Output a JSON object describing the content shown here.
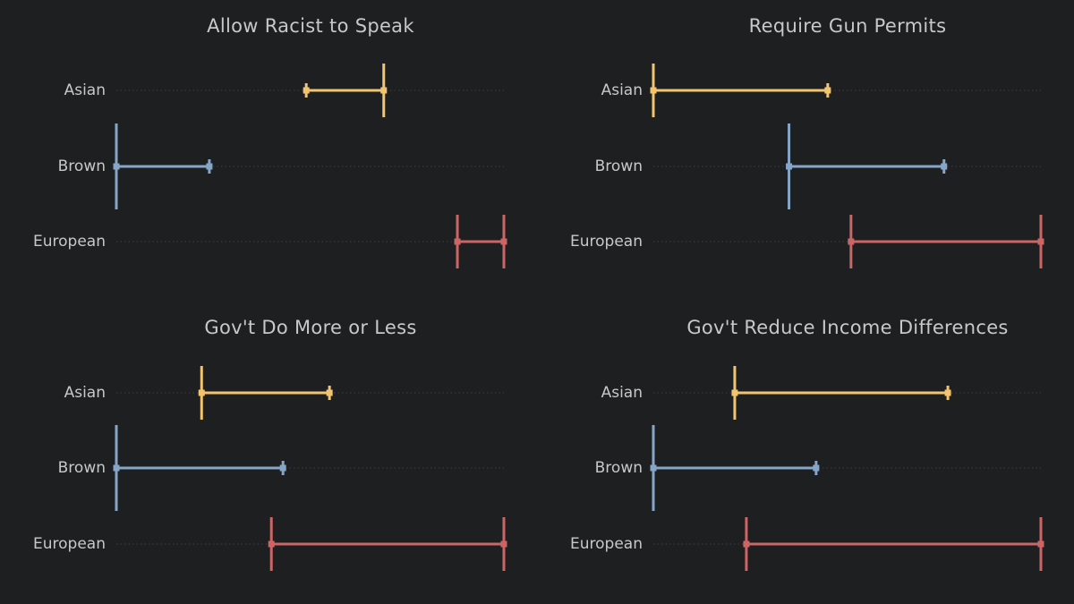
{
  "chart_data": [
    {
      "type": "range",
      "title": "Allow Racist to Speak",
      "categories": [
        "Asian",
        "Brown",
        "European"
      ],
      "series": [
        {
          "category": "Asian",
          "low": 0.49,
          "high": 0.69,
          "low_cap": "small",
          "high_cap": "tall",
          "color": "#f2c46d"
        },
        {
          "category": "Brown",
          "low": 0.0,
          "high": 0.24,
          "low_cap": "tall",
          "high_cap": "small",
          "color": "#86a6c8"
        },
        {
          "category": "European",
          "low": 0.88,
          "high": 1.0,
          "low_cap": "tall",
          "high_cap": "tall",
          "color": "#cc6666"
        }
      ],
      "xlim": [
        0,
        1
      ],
      "grid": true
    },
    {
      "type": "range",
      "title": "Require Gun Permits",
      "categories": [
        "Asian",
        "Brown",
        "European"
      ],
      "series": [
        {
          "category": "Asian",
          "low": 0.0,
          "high": 0.45,
          "low_cap": "tall",
          "high_cap": "small",
          "color": "#f2c46d"
        },
        {
          "category": "Brown",
          "low": 0.35,
          "high": 0.75,
          "low_cap": "tall",
          "high_cap": "small",
          "color": "#86a6c8"
        },
        {
          "category": "European",
          "low": 0.51,
          "high": 1.0,
          "low_cap": "tall",
          "high_cap": "tall",
          "color": "#cc6666"
        }
      ],
      "xlim": [
        0,
        1
      ],
      "grid": true
    },
    {
      "type": "range",
      "title": "Gov't Do More or Less",
      "categories": [
        "Asian",
        "Brown",
        "European"
      ],
      "series": [
        {
          "category": "Asian",
          "low": 0.22,
          "high": 0.55,
          "low_cap": "tall",
          "high_cap": "small",
          "color": "#f2c46d"
        },
        {
          "category": "Brown",
          "low": 0.0,
          "high": 0.43,
          "low_cap": "tall",
          "high_cap": "small",
          "color": "#86a6c8"
        },
        {
          "category": "European",
          "low": 0.4,
          "high": 1.0,
          "low_cap": "tall",
          "high_cap": "tall",
          "color": "#cc6666"
        }
      ],
      "xlim": [
        0,
        1
      ],
      "grid": true
    },
    {
      "type": "range",
      "title": "Gov't Reduce Income Differences",
      "categories": [
        "Asian",
        "Brown",
        "European"
      ],
      "series": [
        {
          "category": "Asian",
          "low": 0.21,
          "high": 0.76,
          "low_cap": "tall",
          "high_cap": "small",
          "color": "#f2c46d"
        },
        {
          "category": "Brown",
          "low": 0.0,
          "high": 0.42,
          "low_cap": "tall",
          "high_cap": "small",
          "color": "#86a6c8"
        },
        {
          "category": "European",
          "low": 0.24,
          "high": 1.0,
          "low_cap": "tall",
          "high_cap": "tall",
          "color": "#cc6666"
        }
      ],
      "xlim": [
        0,
        1
      ],
      "grid": true
    }
  ]
}
